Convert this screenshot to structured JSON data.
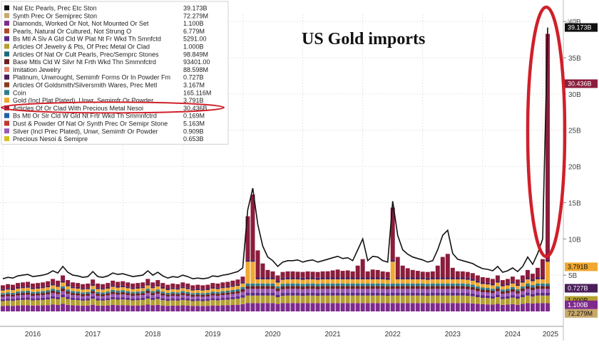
{
  "chart_data": {
    "type": "area",
    "title": "US Gold imports",
    "x_tick_labels": [
      "2016",
      "2017",
      "2018",
      "2019",
      "2020",
      "2021",
      "2022",
      "2023",
      "2024",
      "2025"
    ],
    "y_tick_labels": [
      "5B",
      "10B",
      "15B",
      "20B",
      "25B",
      "30B",
      "35B",
      "40B"
    ],
    "ylim": [
      0,
      41
    ],
    "grid": true,
    "legend_position": "top-left",
    "series": [
      {
        "name": "Nat Etc Pearls, Prec Etc Ston",
        "last_value": "39.173B",
        "color": "#111111"
      },
      {
        "name": "Synth Prec Or Semiprec Ston",
        "last_value": "72.279M",
        "color": "#c8a86a"
      },
      {
        "name": "Diamonds, Worked Or Not, Not Mounted Or Set",
        "last_value": "1.100B",
        "color": "#7d2a8c"
      },
      {
        "name": "Pearls, Natural Or Cultured, Not Strung O",
        "last_value": "6.779M",
        "color": "#b24a2e"
      },
      {
        "name": "Bs Mtl A Slv A Gld Cld W Plat Nt Fr Wkd Th Smnfctd",
        "last_value": "5291.00",
        "color": "#5b2a86"
      },
      {
        "name": "Articles Of Jewelry & Pts, Of Prec Metal Or Clad",
        "last_value": "1.000B",
        "color": "#b5a032"
      },
      {
        "name": "Articles Of Nat Or Cult Pearls, Prec/Semprc Stones",
        "last_value": "98.849M",
        "color": "#1c6a78"
      },
      {
        "name": "Base Mtls Cld W Silvr Nt Frth Wkd Thn Smmnfctrd",
        "last_value": "93401.00",
        "color": "#6b1f1f"
      },
      {
        "name": "Imitation Jewelry",
        "last_value": "88.598M",
        "color": "#e0826a"
      },
      {
        "name": "Platinum, Unwrought, Semimfr Forms Or In Powder Fm",
        "last_value": "0.727B",
        "color": "#4b1e5a"
      },
      {
        "name": "Articles Of Goldsmith/Silversmith Wares, Prec Metl",
        "last_value": "3.167M",
        "color": "#8a3a1e"
      },
      {
        "name": "Coin",
        "last_value": "165.116M",
        "color": "#2e7d8c"
      },
      {
        "name": "Gold (Incl Plat Plated), Unwr, Semimfr Or Powder",
        "last_value": "3.791B",
        "color": "#f0a830"
      },
      {
        "name": "Articles Of Or Clad With Precious Metal Nesoi",
        "last_value": "30.436B",
        "color": "#8b1c3c"
      },
      {
        "name": "Bs Mtl Or Slr Cld W Gld Nt Frtr Wkd Th Smmnfctrd",
        "last_value": "0.169M",
        "color": "#1f5fa8"
      },
      {
        "name": "Dust & Powder Of Nat Or Synth Prec Or Semipr Stone",
        "last_value": "5.163M",
        "color": "#c0392b"
      },
      {
        "name": "Silver (Incl Prec Plated), Unwr, Semimfr Or Powder",
        "last_value": "0.909B",
        "color": "#9b59b6"
      },
      {
        "name": "Precious Nesoi & Semipre",
        "last_value": "0.653B",
        "color": "#d4c020"
      }
    ],
    "stack_layers": [
      {
        "series": "Diamonds, Worked Or Not, Not Mounted Or Set",
        "base": 1.0,
        "color": "#7d2a8c"
      },
      {
        "series": "Articles Of Jewelry & Pts, Of Prec Metal Or Clad",
        "base": 0.9,
        "color": "#b5a032"
      },
      {
        "series": "Bs Mtl A Slv A Gld Cld W Plat Nt Fr Wkd Th Smnfctd",
        "base": 0.35,
        "color": "#5b2a86"
      },
      {
        "series": "Silver (Incl Prec Plated), Unwr, Semimfr Or Powder",
        "base": 0.45,
        "color": "#9b59b6"
      },
      {
        "series": "Base Mtls Cld W Silvr Nt Frth Wkd Thn Smmnfctrd",
        "base": 0.35,
        "color": "#6b1f1f"
      },
      {
        "series": "Coin",
        "base": 0.3,
        "color": "#2e7d8c"
      },
      {
        "series": "Gold (Incl Plat Plated), Unwr, Semimfr Or Powder",
        "base": 0.5,
        "color": "#f0a830"
      },
      {
        "series": "Platinum, Unwrought, Semimfr Forms Or In Powder Fm",
        "base": 0.25,
        "color": "#4b1e5a"
      },
      {
        "series": "Articles Of Or Clad With Precious Metal Nesoi",
        "base": 0.7,
        "color": "#8b1c3c"
      }
    ],
    "total_monthly": [
      4.5,
      4.7,
      4.6,
      4.9,
      5.0,
      5.1,
      4.8,
      4.9,
      5.0,
      5.2,
      5.6,
      5.3,
      6.2,
      5.4,
      5.0,
      4.9,
      4.7,
      4.8,
      5.5,
      4.8,
      4.7,
      4.9,
      5.3,
      5.1,
      5.2,
      5.0,
      4.8,
      4.9,
      5.0,
      5.6,
      5.0,
      5.4,
      4.9,
      4.6,
      4.8,
      4.7,
      5.0,
      4.8,
      4.5,
      4.6,
      4.5,
      4.6,
      4.9,
      4.8,
      5.0,
      5.1,
      5.3,
      5.5,
      6.0,
      14.0,
      17.0,
      12.0,
      9.0,
      7.5,
      7.0,
      6.2,
      6.8,
      7.0,
      7.0,
      7.1,
      6.8,
      7.0,
      7.1,
      6.8,
      7.0,
      7.2,
      7.4,
      7.6,
      7.3,
      7.4,
      7.0,
      8.5,
      10.0,
      7.0,
      7.6,
      7.5,
      7.0,
      6.8,
      15.2,
      10.5,
      8.5,
      7.9,
      7.5,
      7.3,
      7.1,
      6.8,
      7.0,
      8.5,
      10.5,
      11.2,
      8.0,
      7.2,
      7.0,
      6.8,
      6.6,
      6.2,
      5.9,
      5.8,
      5.6,
      6.2,
      5.4,
      5.6,
      6.0,
      5.5,
      6.2,
      7.5,
      6.5,
      8.0,
      10.0,
      39.173
    ],
    "annotations": [
      {
        "text": "40B",
        "color": "#111111"
      },
      {
        "text": "39.173B",
        "color": "#111111"
      },
      {
        "text": "30.436B",
        "color": "#8b1c3c"
      },
      {
        "text": "3.791B",
        "color": "#f0a830"
      },
      {
        "text": "1.000B",
        "color": "#b5a032"
      },
      {
        "text": "1.100B",
        "color": "#7d2a8c"
      },
      {
        "text": "72.279M",
        "color": "#c8a86a"
      },
      {
        "text": "0.727B",
        "color": "#4b1e5a"
      }
    ],
    "highlight_series": "Articles Of Or Clad With Precious Metal Nesoi",
    "highlight_color": "#d0202a"
  }
}
